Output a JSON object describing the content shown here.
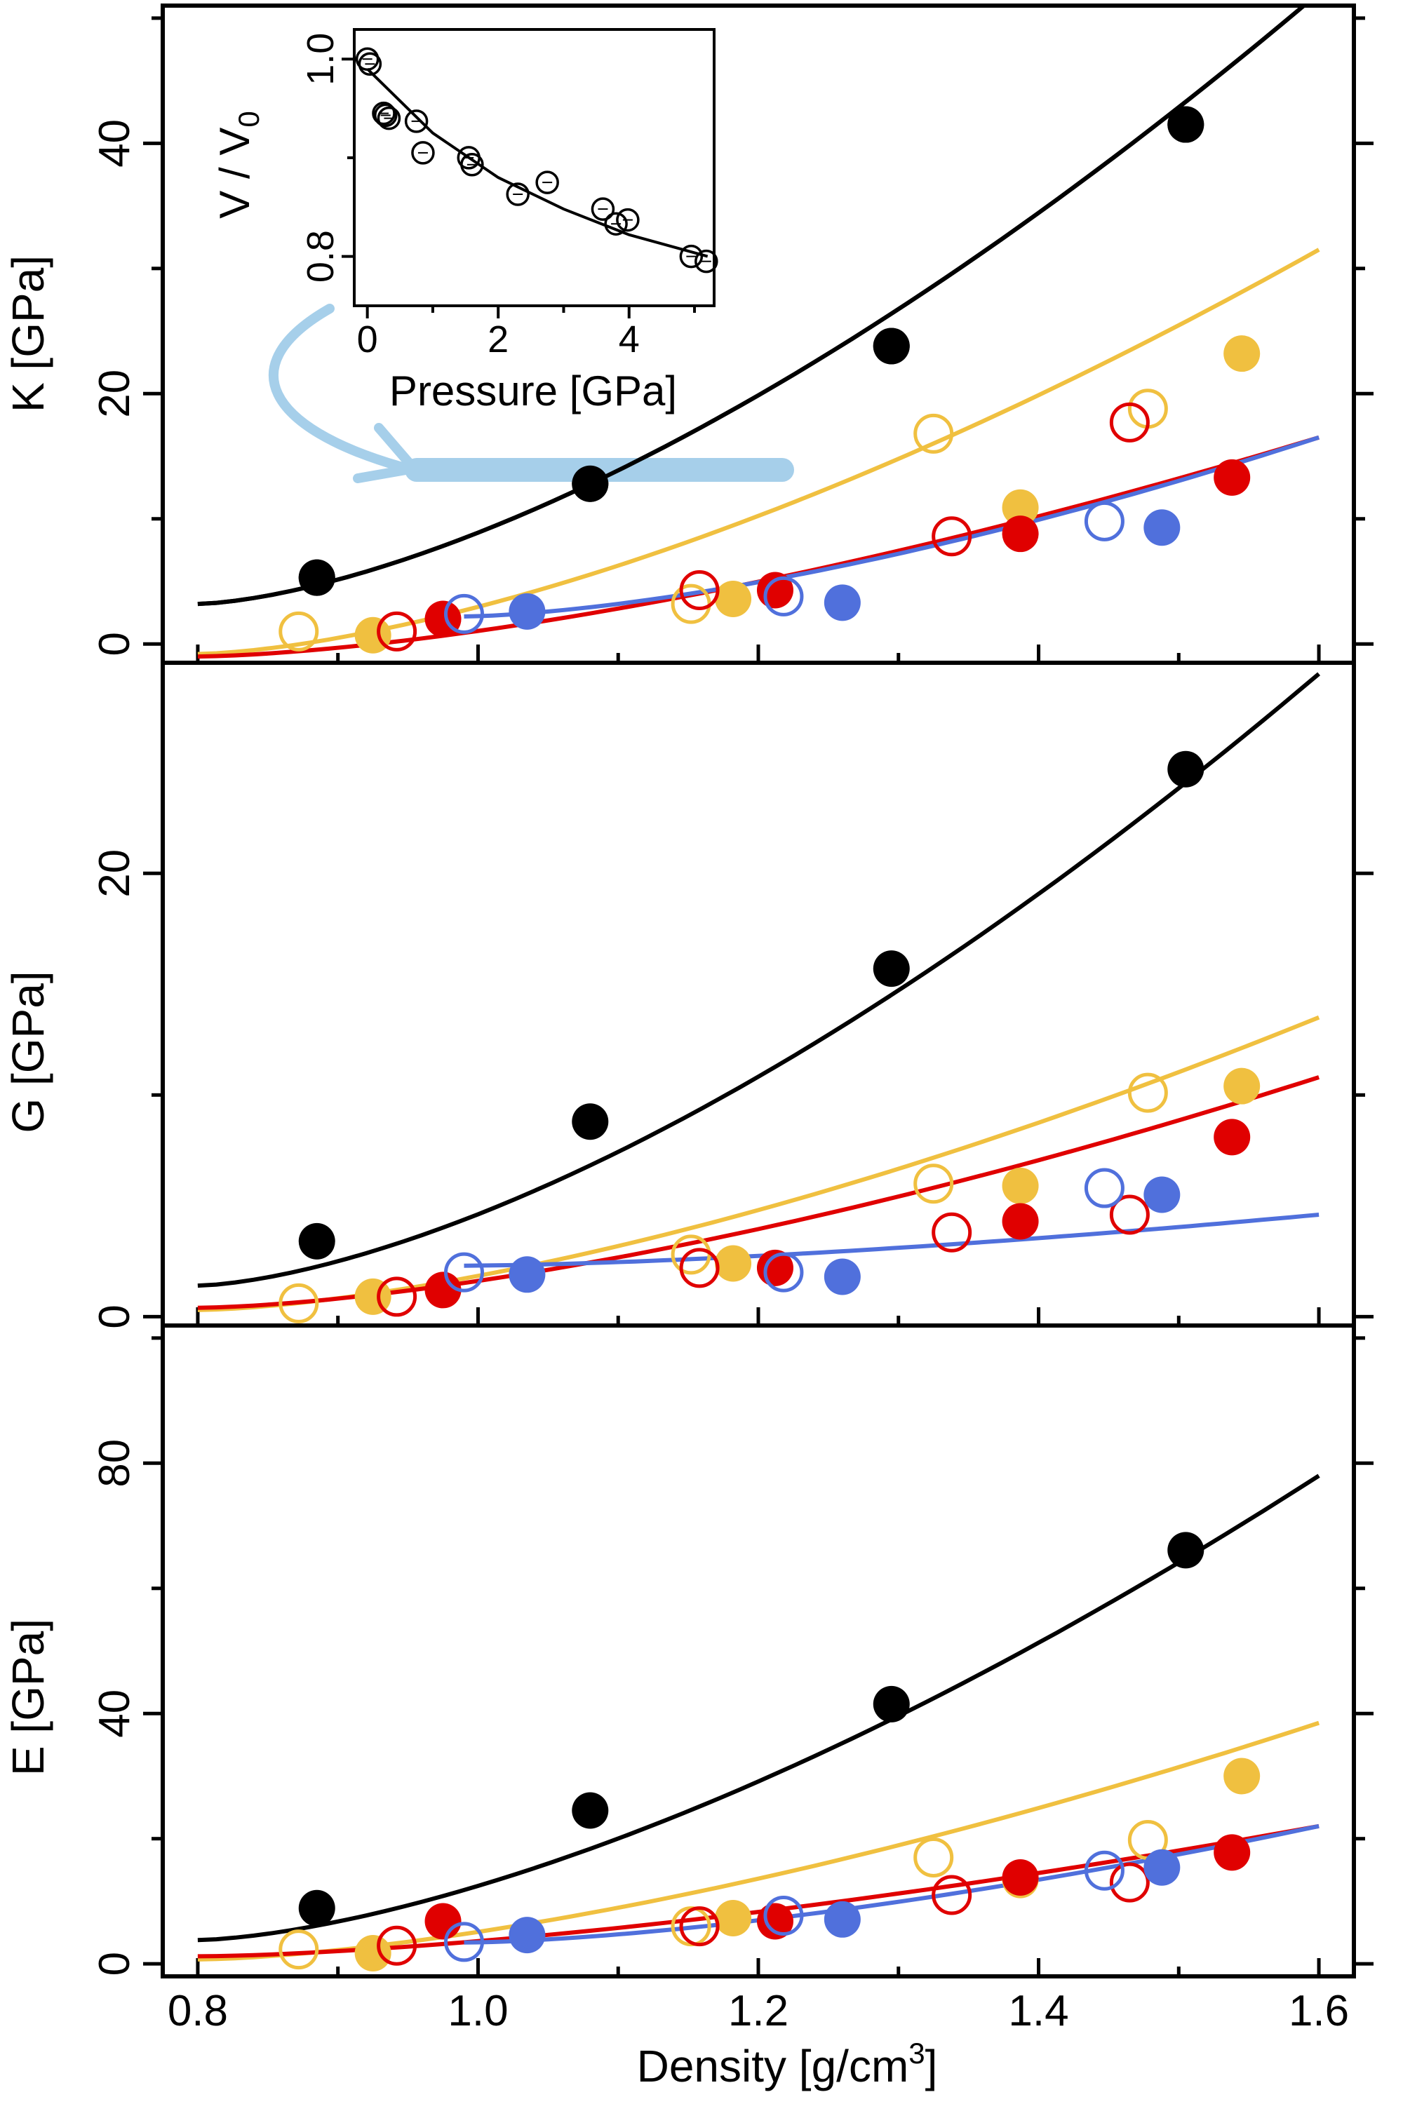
{
  "colors": {
    "black": "#000000",
    "yellow": "#f0c040",
    "red": "#e00000",
    "blue": "#5070dc",
    "arrow": "#a6cfea",
    "band": "#a6cfea"
  },
  "chart_data": [
    {
      "id": "K",
      "type": "scatter",
      "ylabel": "K [GPa]",
      "xlim": [
        0.775,
        1.625
      ],
      "ylim": [
        -1.5,
        51
      ],
      "yticks": [
        0,
        20,
        40
      ],
      "yminor": [
        10,
        30,
        50
      ],
      "series": [
        {
          "color": "black",
          "filled": [
            [
              0.885,
              5.3
            ],
            [
              1.08,
              12.8
            ],
            [
              1.295,
              23.8
            ],
            [
              1.505,
              41.5
            ]
          ],
          "open": [],
          "fit": [
            0.8,
            3.2,
            1.6,
            52
          ]
        },
        {
          "color": "yellow",
          "filled": [
            [
              0.925,
              0.7
            ],
            [
              1.182,
              3.6
            ],
            [
              1.387,
              10.9
            ],
            [
              1.545,
              23.2
            ]
          ],
          "open": [
            [
              0.872,
              1.0
            ],
            [
              1.152,
              3.2
            ],
            [
              1.325,
              16.8
            ],
            [
              1.478,
              18.8
            ]
          ],
          "fit": [
            0.8,
            -0.8,
            1.6,
            31.5
          ]
        },
        {
          "color": "red",
          "filled": [
            [
              0.975,
              2.0
            ],
            [
              1.212,
              4.3
            ],
            [
              1.387,
              8.8
            ],
            [
              1.538,
              13.3
            ]
          ],
          "open": [
            [
              0.942,
              1.0
            ],
            [
              1.158,
              4.3
            ],
            [
              1.338,
              8.6
            ],
            [
              1.465,
              17.7
            ]
          ],
          "fit": [
            0.8,
            -1.0,
            1.6,
            16.5
          ]
        },
        {
          "color": "blue",
          "filled": [
            [
              1.035,
              2.6
            ],
            [
              1.26,
              3.3
            ],
            [
              1.488,
              9.3
            ]
          ],
          "open": [
            [
              0.99,
              2.4
            ],
            [
              1.218,
              3.8
            ],
            [
              1.447,
              9.8
            ]
          ],
          "fit": [
            0.99,
            2.2,
            1.6,
            16.5
          ]
        }
      ]
    },
    {
      "id": "G",
      "type": "scatter",
      "ylabel": "G [GPa]",
      "xlim": [
        0.775,
        1.625
      ],
      "ylim": [
        -0.4,
        29.5
      ],
      "yticks": [
        0,
        20
      ],
      "yminor": [
        10
      ],
      "series": [
        {
          "color": "black",
          "filled": [
            [
              0.885,
              3.4
            ],
            [
              1.08,
              8.8
            ],
            [
              1.295,
              15.7
            ],
            [
              1.505,
              24.7
            ]
          ],
          "open": [],
          "fit": [
            0.8,
            1.4,
            1.6,
            29.0
          ]
        },
        {
          "color": "yellow",
          "filled": [
            [
              0.925,
              0.9
            ],
            [
              1.182,
              2.4
            ],
            [
              1.387,
              5.9
            ],
            [
              1.545,
              10.4
            ]
          ],
          "open": [
            [
              0.872,
              0.6
            ],
            [
              1.152,
              2.8
            ],
            [
              1.325,
              6.0
            ],
            [
              1.478,
              10.1
            ]
          ],
          "fit": [
            0.8,
            0.3,
            1.6,
            13.5
          ]
        },
        {
          "color": "red",
          "filled": [
            [
              0.975,
              1.2
            ],
            [
              1.212,
              2.2
            ],
            [
              1.387,
              4.3
            ],
            [
              1.538,
              8.1
            ]
          ],
          "open": [
            [
              0.942,
              0.9
            ],
            [
              1.158,
              2.2
            ],
            [
              1.338,
              3.8
            ],
            [
              1.465,
              4.6
            ]
          ],
          "fit": [
            0.8,
            0.4,
            1.6,
            10.8
          ]
        },
        {
          "color": "blue",
          "filled": [
            [
              1.035,
              1.9
            ],
            [
              1.26,
              1.8
            ],
            [
              1.488,
              5.5
            ]
          ],
          "open": [
            [
              0.99,
              2.0
            ],
            [
              1.218,
              2.0
            ],
            [
              1.447,
              5.8
            ]
          ],
          "fit": [
            0.99,
            2.3,
            1.6,
            4.6
          ]
        }
      ]
    },
    {
      "id": "E",
      "type": "scatter",
      "ylabel": "E [GPa]",
      "xlabel": "Density [g/cm",
      "xlabel_sup": "3",
      "xlabel_end": "]",
      "xlim": [
        0.775,
        1.625
      ],
      "ylim": [
        -2,
        102
      ],
      "yticks": [
        0,
        40,
        80
      ],
      "yminor": [
        20,
        60,
        100
      ],
      "xticks": [
        0.8,
        1.0,
        1.2,
        1.4,
        1.6
      ],
      "xtick_labels": [
        "0.8",
        "1.0",
        "1.2",
        "1.4",
        "1.6"
      ],
      "xminor": [
        0.9,
        1.1,
        1.3,
        1.5
      ],
      "series": [
        {
          "color": "black",
          "filled": [
            [
              0.885,
              8.9
            ],
            [
              1.08,
              24.5
            ],
            [
              1.295,
              41.5
            ],
            [
              1.505,
              66.1
            ]
          ],
          "open": [],
          "fit": [
            0.8,
            3.8,
            1.6,
            78.0
          ]
        },
        {
          "color": "yellow",
          "filled": [
            [
              0.925,
              1.7
            ],
            [
              1.182,
              7.3
            ],
            [
              1.387,
              13.4
            ],
            [
              1.545,
              30.0
            ]
          ],
          "open": [
            [
              0.872,
              2.3
            ],
            [
              1.152,
              6.0
            ],
            [
              1.325,
              17.0
            ],
            [
              1.478,
              19.8
            ]
          ],
          "fit": [
            0.8,
            0.7,
            1.6,
            38.5
          ]
        },
        {
          "color": "red",
          "filled": [
            [
              0.975,
              6.8
            ],
            [
              1.212,
              6.8
            ],
            [
              1.387,
              13.8
            ],
            [
              1.538,
              17.8
            ]
          ],
          "open": [
            [
              0.942,
              2.9
            ],
            [
              1.158,
              6.0
            ],
            [
              1.338,
              11.0
            ],
            [
              1.465,
              13.0
            ]
          ],
          "fit": [
            0.8,
            1.2,
            1.6,
            22.0
          ]
        },
        {
          "color": "blue",
          "filled": [
            [
              1.035,
              4.6
            ],
            [
              1.26,
              7.1
            ],
            [
              1.488,
              15.4
            ]
          ],
          "open": [
            [
              0.99,
              3.5
            ],
            [
              1.218,
              7.7
            ],
            [
              1.447,
              14.9
            ]
          ],
          "fit": [
            0.99,
            3.4,
            1.6,
            22.0
          ]
        }
      ]
    },
    {
      "id": "inset",
      "type": "scatter",
      "xlabel": "Pressure [GPa]",
      "ylabel": "V / V",
      "ylabel_sub": "0",
      "xlim": [
        -0.2,
        5.3
      ],
      "ylim": [
        0.75,
        1.03
      ],
      "xticks": [
        0,
        2,
        4
      ],
      "yticks": [
        0.8,
        1.0
      ],
      "yticks_labels": [
        "0.8",
        "1.0"
      ],
      "yminor": [
        0.9
      ],
      "points": [
        [
          0.0,
          1.0
        ],
        [
          0.04,
          0.995
        ],
        [
          0.25,
          0.945
        ],
        [
          0.33,
          0.94
        ],
        [
          0.28,
          0.943
        ],
        [
          0.75,
          0.937
        ],
        [
          0.85,
          0.905
        ],
        [
          1.55,
          0.9
        ],
        [
          1.6,
          0.893
        ],
        [
          2.3,
          0.863
        ],
        [
          2.75,
          0.875
        ],
        [
          3.6,
          0.848
        ],
        [
          3.8,
          0.833
        ],
        [
          3.98,
          0.837
        ],
        [
          4.95,
          0.8
        ],
        [
          5.18,
          0.795
        ]
      ],
      "fit": [
        [
          0.0,
          0.99
        ],
        [
          1.0,
          0.925
        ],
        [
          2.0,
          0.88
        ],
        [
          3.0,
          0.848
        ],
        [
          4.0,
          0.822
        ],
        [
          5.2,
          0.8
        ]
      ]
    }
  ]
}
